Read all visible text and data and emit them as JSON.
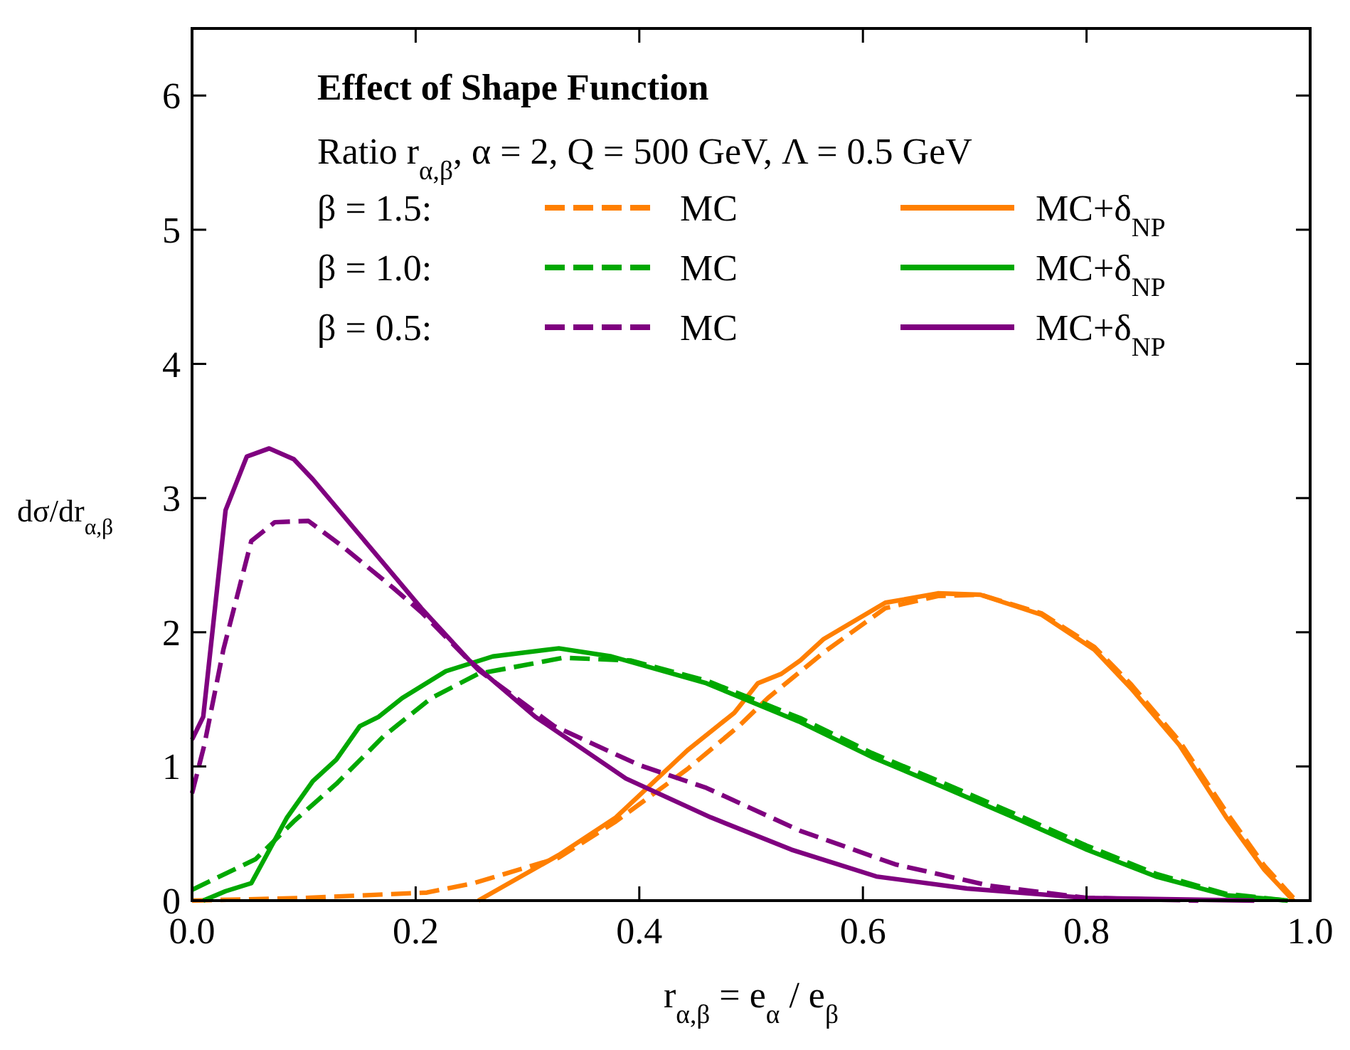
{
  "chart_data": {
    "type": "line",
    "title": "Effect of Shape Function",
    "subtitle": "Ratio r$_{α,β}$, α = 2, Q = 500 GeV, Λ = 0.5 GeV",
    "xlabel": "r$_{α,β}$ = e$_{α}$ / e$_{β}$",
    "ylabel": "dσ/dr$_{α,β}$",
    "annotations": [
      "β = 1.5:",
      "β = 1.0:",
      "β = 0.5:"
    ],
    "xlim": [
      0,
      1
    ],
    "ylim": [
      0,
      6.5
    ],
    "xticks": [
      {
        "value": 0,
        "label": "0.0"
      },
      {
        "value": 0.2,
        "label": "0.2"
      },
      {
        "value": 0.4,
        "label": "0.4"
      },
      {
        "value": 0.6,
        "label": "0.6"
      },
      {
        "value": 0.8,
        "label": "0.8"
      },
      {
        "value": 1,
        "label": "1.0"
      }
    ],
    "yticks": [
      0,
      1,
      2,
      3,
      4,
      5,
      6
    ],
    "grid": false,
    "legend": "top",
    "marker": "none",
    "series": [
      {
        "name": "MC",
        "color": "#ff7f00",
        "line_style": "dashed",
        "x": [
          0,
          0.1,
          0.21,
          0.252,
          0.328,
          0.379,
          0.443,
          0.489,
          0.515,
          0.565,
          0.62,
          0.667,
          0.705,
          0.76,
          0.807,
          0.84,
          0.883,
          0.925,
          0.959,
          0.985
        ],
        "values": [
          0,
          0.02,
          0.06,
          0.13,
          0.32,
          0.59,
          0.98,
          1.3,
          1.51,
          1.85,
          2.18,
          2.27,
          2.28,
          2.14,
          1.89,
          1.61,
          1.19,
          0.66,
          0.26,
          0.02
        ]
      },
      {
        "name": "MC+δ$_{NP}$",
        "color": "#ff7f00",
        "line_style": "solid",
        "x": [
          0.256,
          0.328,
          0.379,
          0.443,
          0.485,
          0.506,
          0.527,
          0.544,
          0.565,
          0.62,
          0.667,
          0.705,
          0.76,
          0.807,
          0.84,
          0.883,
          0.925,
          0.959,
          0.985
        ],
        "values": [
          0,
          0.34,
          0.62,
          1.12,
          1.4,
          1.62,
          1.69,
          1.79,
          1.95,
          2.22,
          2.29,
          2.28,
          2.13,
          1.87,
          1.58,
          1.16,
          0.62,
          0.23,
          0
        ]
      },
      {
        "name": "MC",
        "color": "#00a800",
        "line_style": "dashed",
        "x": [
          0,
          0.057,
          0.091,
          0.129,
          0.172,
          0.214,
          0.256,
          0.332,
          0.392,
          0.46,
          0.544,
          0.608,
          0.671,
          0.735,
          0.8,
          0.862,
          0.925,
          0.98
        ],
        "values": [
          0.08,
          0.31,
          0.59,
          0.87,
          1.23,
          1.51,
          1.69,
          1.81,
          1.79,
          1.64,
          1.36,
          1.1,
          0.88,
          0.65,
          0.41,
          0.2,
          0.05,
          0
        ]
      },
      {
        "name": "MC+δ$_{NP}$",
        "color": "#00a800",
        "line_style": "solid",
        "x": [
          0.01,
          0.03,
          0.053,
          0.085,
          0.108,
          0.129,
          0.15,
          0.167,
          0.188,
          0.227,
          0.269,
          0.328,
          0.375,
          0.46,
          0.544,
          0.608,
          0.671,
          0.735,
          0.8,
          0.862,
          0.925,
          0.98
        ],
        "values": [
          0,
          0.07,
          0.13,
          0.62,
          0.89,
          1.05,
          1.3,
          1.37,
          1.51,
          1.71,
          1.82,
          1.88,
          1.82,
          1.62,
          1.33,
          1.07,
          0.85,
          0.62,
          0.38,
          0.18,
          0.04,
          0
        ]
      },
      {
        "name": "MC",
        "color": "#7f007f",
        "line_style": "dashed",
        "x": [
          0,
          0.011,
          0.028,
          0.053,
          0.074,
          0.104,
          0.133,
          0.18,
          0.205,
          0.256,
          0.324,
          0.4,
          0.46,
          0.544,
          0.629,
          0.714,
          0.8,
          0.9
        ],
        "values": [
          0.8,
          1.16,
          1.87,
          2.68,
          2.82,
          2.83,
          2.65,
          2.33,
          2.15,
          1.72,
          1.3,
          1.01,
          0.84,
          0.52,
          0.27,
          0.11,
          0.02,
          0
        ]
      },
      {
        "name": "MC+δ$_{NP}$",
        "color": "#7f007f",
        "line_style": "solid",
        "x": [
          0,
          0.01,
          0.03,
          0.049,
          0.069,
          0.091,
          0.108,
          0.205,
          0.248,
          0.307,
          0.388,
          0.464,
          0.536,
          0.612,
          0.693,
          0.8,
          0.95
        ],
        "values": [
          1.2,
          1.37,
          2.91,
          3.31,
          3.37,
          3.29,
          3.14,
          2.18,
          1.79,
          1.37,
          0.91,
          0.62,
          0.38,
          0.18,
          0.09,
          0.02,
          0
        ]
      }
    ]
  }
}
